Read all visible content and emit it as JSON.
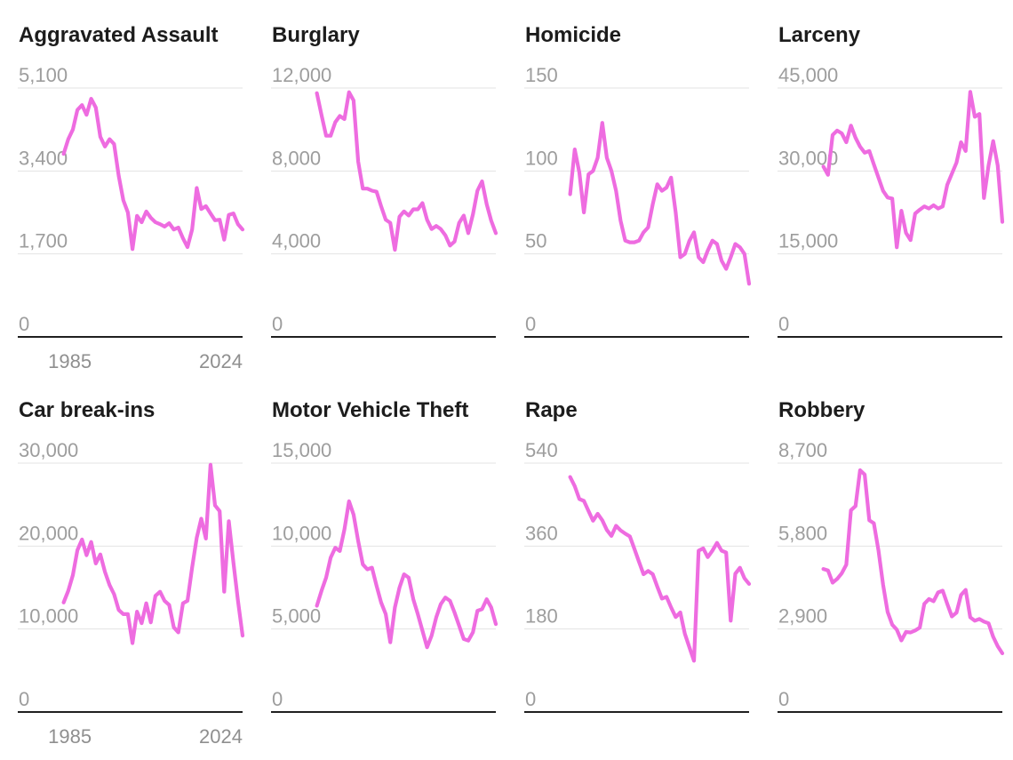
{
  "page": {
    "background": "#ffffff"
  },
  "colors": {
    "line": "#ee6ce0",
    "gridline": "#e3e3e3",
    "axis": "#1f1f1f",
    "ytick_label": "#9d9d9d",
    "xtick_label": "#8f8f8f",
    "title": "#1c1c1c"
  },
  "x_axis": {
    "domain_start_year": 1975,
    "start_year": 1985,
    "end_year": 2024
  },
  "chart_data": [
    {
      "type": "line",
      "title": "Aggravated Assault",
      "ylim": [
        0,
        5100
      ],
      "ytick_values": [
        5100,
        3400,
        1700,
        0
      ],
      "ytick_labels": [
        "5,100",
        "3,400",
        "1,700",
        "0"
      ],
      "x_tick_labels": [
        "1985",
        "2024"
      ],
      "years_start": 1985,
      "years_end": 2024,
      "values": [
        3750,
        4050,
        4250,
        4650,
        4750,
        4550,
        4880,
        4700,
        4100,
        3900,
        4050,
        3950,
        3300,
        2800,
        2550,
        1800,
        2480,
        2350,
        2570,
        2440,
        2350,
        2310,
        2260,
        2330,
        2200,
        2240,
        2020,
        1840,
        2200,
        3050,
        2620,
        2680,
        2530,
        2390,
        2400,
        1990,
        2500,
        2530,
        2310,
        2200
      ]
    },
    {
      "type": "line",
      "title": "Burglary",
      "ylim": [
        0,
        12000
      ],
      "ytick_values": [
        12000,
        8000,
        4000,
        0
      ],
      "ytick_labels": [
        "12,000",
        "8,000",
        "4,000",
        "0"
      ],
      "x_tick_labels": [],
      "years_start": 1985,
      "years_end": 2024,
      "values": [
        11750,
        10700,
        9700,
        9700,
        10350,
        10650,
        10500,
        11800,
        11400,
        8450,
        7150,
        7150,
        7050,
        7000,
        6300,
        5650,
        5500,
        4200,
        5800,
        6050,
        5850,
        6150,
        6150,
        6450,
        5650,
        5200,
        5350,
        5200,
        4900,
        4400,
        4600,
        5500,
        5850,
        5000,
        5900,
        7050,
        7500,
        6400,
        5600,
        5000
      ]
    },
    {
      "type": "line",
      "title": "Homicide",
      "ylim": [
        0,
        150
      ],
      "ytick_values": [
        150,
        100,
        50,
        0
      ],
      "ytick_labels": [
        "150",
        "100",
        "50",
        "0"
      ],
      "x_tick_labels": [],
      "years_start": 1985,
      "years_end": 2024,
      "values": [
        86,
        113,
        99,
        75,
        98,
        100,
        108,
        129,
        108,
        100,
        88,
        70,
        58,
        57,
        57,
        58,
        63,
        66,
        80,
        92,
        88,
        90,
        96,
        75,
        48,
        50,
        58,
        63,
        48,
        45,
        52,
        58,
        56,
        46,
        41,
        48,
        56,
        54,
        50,
        32
      ]
    },
    {
      "type": "line",
      "title": "Larceny",
      "ylim": [
        0,
        45000
      ],
      "ytick_values": [
        45000,
        30000,
        15000,
        0
      ],
      "ytick_labels": [
        "45,000",
        "30,000",
        "15,000",
        "0"
      ],
      "x_tick_labels": [],
      "years_start": 1985,
      "years_end": 2024,
      "values": [
        30800,
        29300,
        36500,
        37300,
        36800,
        35200,
        38200,
        36000,
        34400,
        33300,
        33600,
        31200,
        28800,
        26400,
        25200,
        25000,
        16200,
        22800,
        18800,
        17500,
        22300,
        23000,
        23600,
        23200,
        23800,
        23200,
        23600,
        27500,
        29500,
        31500,
        35200,
        33600,
        44300,
        39800,
        40300,
        25100,
        31000,
        35400,
        31000,
        20800
      ]
    },
    {
      "type": "line",
      "title": "Car break-ins",
      "ylim": [
        0,
        30000
      ],
      "ytick_values": [
        30000,
        20000,
        10000,
        0
      ],
      "ytick_labels": [
        "30,000",
        "20,000",
        "10,000",
        "0"
      ],
      "x_tick_labels": [
        "1985",
        "2024"
      ],
      "years_start": 1985,
      "years_end": 2024,
      "values": [
        13200,
        14600,
        16500,
        19500,
        20800,
        18900,
        20500,
        17900,
        19000,
        16900,
        15300,
        14200,
        12300,
        11800,
        11800,
        8300,
        12100,
        10700,
        13100,
        10800,
        14000,
        14500,
        13400,
        12900,
        10200,
        9600,
        13100,
        13400,
        17400,
        21000,
        23300,
        20900,
        29800,
        24900,
        24200,
        14500,
        23000,
        18000,
        13400,
        9200
      ]
    },
    {
      "type": "line",
      "title": "Motor Vehicle Theft",
      "ylim": [
        0,
        15000
      ],
      "ytick_values": [
        15000,
        10000,
        5000,
        0
      ],
      "ytick_labels": [
        "15,000",
        "10,000",
        "5,000",
        "0"
      ],
      "x_tick_labels": [],
      "years_start": 1985,
      "years_end": 2024,
      "values": [
        6400,
        7300,
        8100,
        9300,
        9900,
        9700,
        11000,
        12700,
        11900,
        10300,
        8900,
        8600,
        8700,
        7600,
        6600,
        5900,
        4200,
        6300,
        7500,
        8300,
        8100,
        6800,
        5900,
        4900,
        3900,
        4600,
        5700,
        6500,
        6900,
        6700,
        6000,
        5200,
        4400,
        4300,
        4800,
        6100,
        6200,
        6800,
        6300,
        5300
      ]
    },
    {
      "type": "line",
      "title": "Rape",
      "ylim": [
        0,
        540
      ],
      "ytick_values": [
        540,
        360,
        180,
        0
      ],
      "ytick_labels": [
        "540",
        "360",
        "180",
        "0"
      ],
      "x_tick_labels": [],
      "years_start": 1985,
      "years_end": 2024,
      "values": [
        510,
        490,
        462,
        458,
        436,
        415,
        430,
        416,
        395,
        382,
        404,
        394,
        387,
        381,
        354,
        326,
        299,
        306,
        299,
        272,
        246,
        250,
        227,
        206,
        216,
        170,
        140,
        111,
        350,
        355,
        336,
        350,
        367,
        350,
        346,
        198,
        300,
        313,
        290,
        278
      ]
    },
    {
      "type": "line",
      "title": "Robbery",
      "ylim": [
        0,
        8700
      ],
      "ytick_values": [
        8700,
        5800,
        2900,
        0
      ],
      "ytick_labels": [
        "8,700",
        "5,800",
        "2,900",
        "0"
      ],
      "x_tick_labels": [],
      "years_start": 1985,
      "years_end": 2024,
      "values": [
        5000,
        4950,
        4520,
        4650,
        4850,
        5150,
        7050,
        7200,
        8450,
        8300,
        6700,
        6600,
        5650,
        4450,
        3500,
        3050,
        2880,
        2500,
        2800,
        2780,
        2850,
        2950,
        3780,
        3950,
        3870,
        4180,
        4240,
        3780,
        3340,
        3470,
        4090,
        4270,
        3310,
        3190,
        3250,
        3160,
        3100,
        2630,
        2300,
        2050
      ]
    }
  ]
}
